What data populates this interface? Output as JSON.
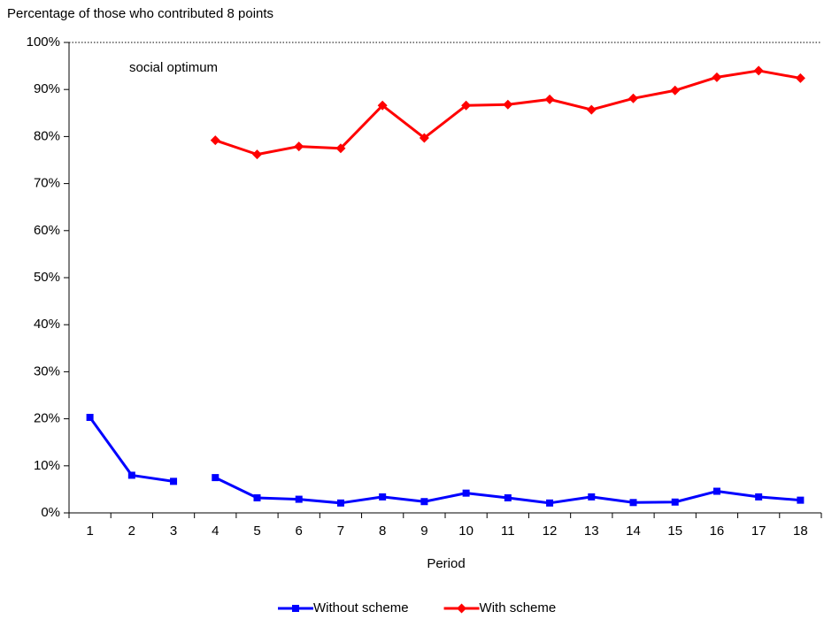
{
  "chart_data": {
    "type": "line",
    "y_axis_title": "Percentage of those who contributed 8 points",
    "x_axis_title": "Period",
    "annotation": "social optimum",
    "optimum_line": 100,
    "categories": [
      1,
      2,
      3,
      4,
      5,
      6,
      7,
      8,
      9,
      10,
      11,
      12,
      13,
      14,
      15,
      16,
      17,
      18
    ],
    "series": [
      {
        "name": "Without scheme",
        "color": "#0000ff",
        "marker": "square",
        "line_breaks_after": [
          2
        ],
        "values": [
          20.3,
          8.0,
          6.7,
          7.5,
          3.2,
          2.9,
          2.1,
          3.4,
          2.4,
          4.2,
          3.2,
          2.1,
          3.4,
          2.2,
          2.3,
          4.6,
          3.4,
          2.7
        ]
      },
      {
        "name": "With scheme",
        "color": "#ff0000",
        "marker": "diamond",
        "line_breaks_after": [],
        "values": [
          null,
          null,
          null,
          79.2,
          76.2,
          77.9,
          77.5,
          86.6,
          79.7,
          86.6,
          86.8,
          87.9,
          85.7,
          88.1,
          89.8,
          92.6,
          94.0,
          92.4
        ]
      }
    ],
    "ylim": [
      0,
      100
    ],
    "yticks": [
      {
        "value": 0,
        "label": "0%"
      },
      {
        "value": 10,
        "label": "10%"
      },
      {
        "value": 20,
        "label": "20%"
      },
      {
        "value": 30,
        "label": "30%"
      },
      {
        "value": 40,
        "label": "40%"
      },
      {
        "value": 50,
        "label": "50%"
      },
      {
        "value": 60,
        "label": "60%"
      },
      {
        "value": 70,
        "label": "70%"
      },
      {
        "value": 80,
        "label": "80%"
      },
      {
        "value": 90,
        "label": "90%"
      },
      {
        "value": 100,
        "label": "100%"
      }
    ],
    "grid": false,
    "legend": "bottom"
  }
}
